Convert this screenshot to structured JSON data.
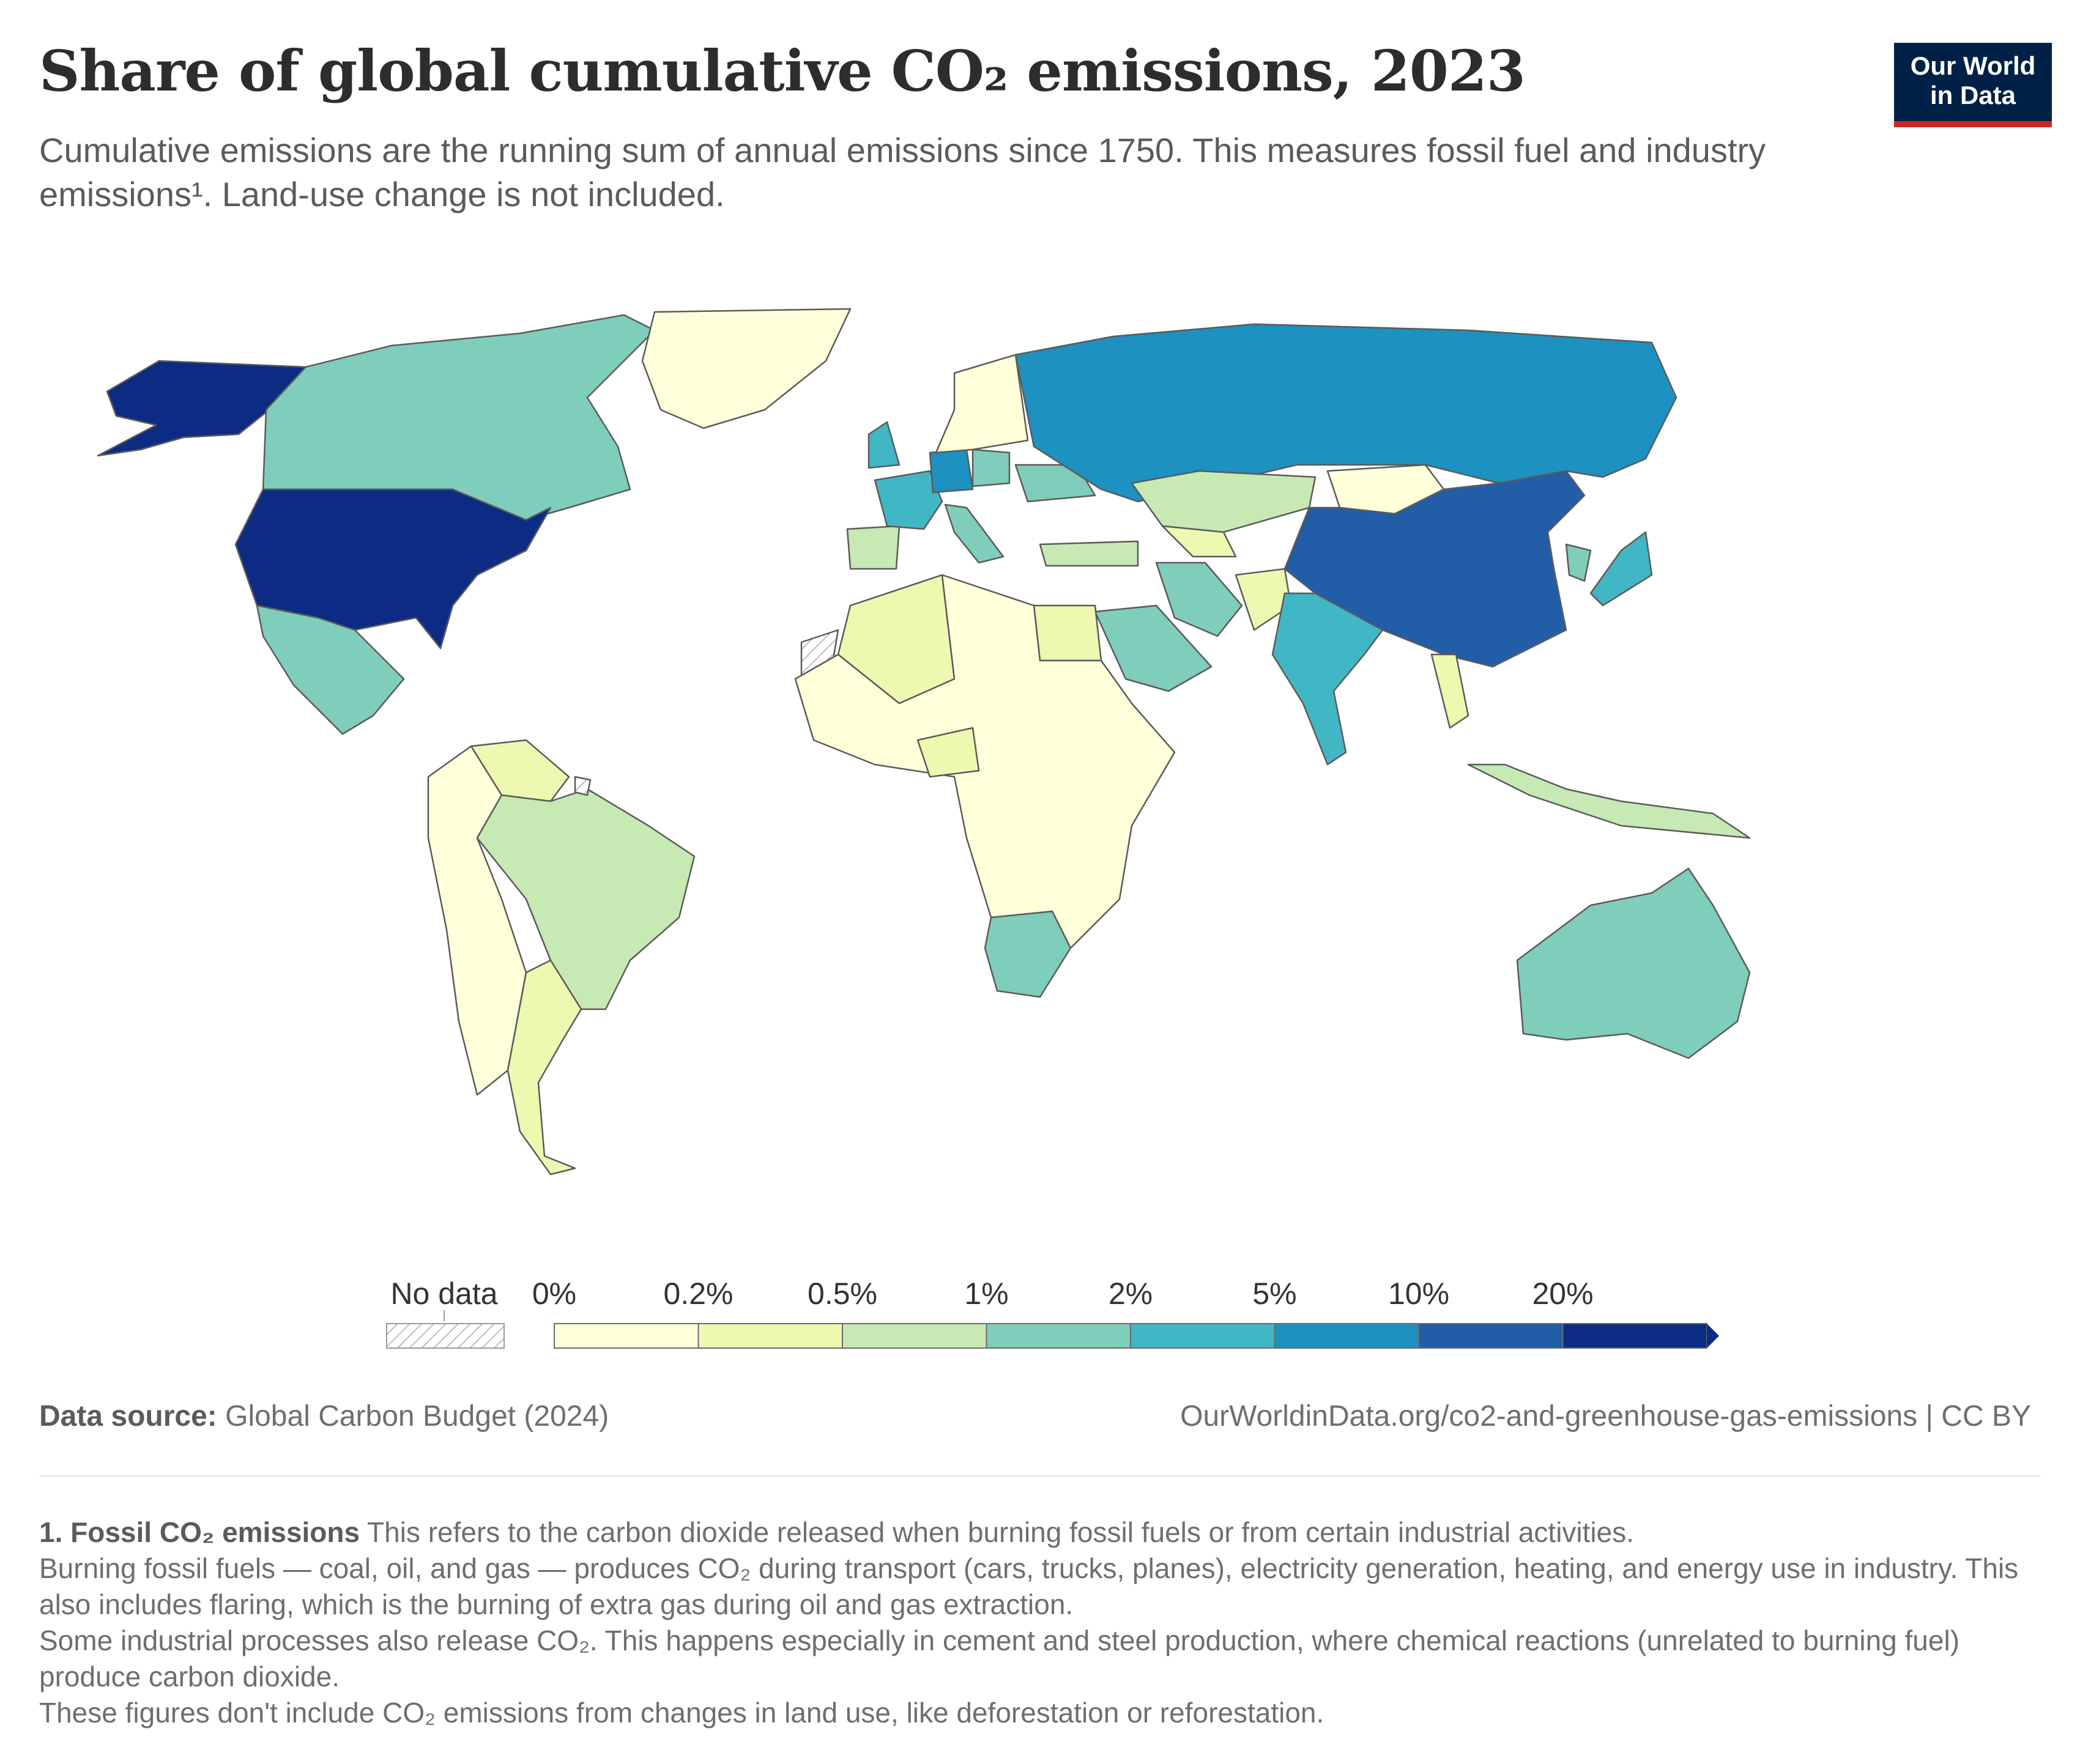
{
  "header": {
    "title": "Share of global cumulative CO₂ emissions, 2023",
    "subtitle": "Cumulative emissions are the running sum of annual emissions since 1750. This measures fossil fuel and industry emissions¹. Land-use change is not included."
  },
  "logo": {
    "line1": "Our World",
    "line2": "in Data",
    "bg_color": "#002147",
    "accent_color": "#ce261e"
  },
  "legend": {
    "no_data_label": "No data",
    "bins": [
      "0%",
      "0.2%",
      "0.5%",
      "1%",
      "2%",
      "5%",
      "10%",
      "20%"
    ],
    "colors": [
      "#ffffd9",
      "#edf8b1",
      "#c7e9b4",
      "#7fcdbb",
      "#41b6c4",
      "#1d91c0",
      "#225ea8",
      "#0c2c84"
    ]
  },
  "map": {
    "regions": [
      {
        "name": "United States",
        "bin": 7
      },
      {
        "name": "Alaska",
        "bin": 7
      },
      {
        "name": "China",
        "bin": 6
      },
      {
        "name": "Russia",
        "bin": 5
      },
      {
        "name": "Germany",
        "bin": 5
      },
      {
        "name": "United Kingdom",
        "bin": 4
      },
      {
        "name": "Japan",
        "bin": 4
      },
      {
        "name": "India",
        "bin": 4
      },
      {
        "name": "France",
        "bin": 4
      },
      {
        "name": "Canada",
        "bin": 3
      },
      {
        "name": "Ukraine",
        "bin": 3
      },
      {
        "name": "Poland",
        "bin": 3
      },
      {
        "name": "Italy",
        "bin": 3
      },
      {
        "name": "Mexico",
        "bin": 3
      },
      {
        "name": "South Africa",
        "bin": 3
      },
      {
        "name": "Australia",
        "bin": 3
      },
      {
        "name": "Iran",
        "bin": 3
      },
      {
        "name": "Saudi Arabia",
        "bin": 3
      },
      {
        "name": "South Korea",
        "bin": 3
      },
      {
        "name": "Brazil",
        "bin": 2
      },
      {
        "name": "Kazakhstan",
        "bin": 2
      },
      {
        "name": "Spain",
        "bin": 2
      },
      {
        "name": "Turkey",
        "bin": 2
      },
      {
        "name": "Indonesia",
        "bin": 2
      },
      {
        "name": "Argentina",
        "bin": 1
      },
      {
        "name": "Egypt",
        "bin": 1
      },
      {
        "name": "Algeria",
        "bin": 1
      },
      {
        "name": "Venezuela",
        "bin": 1
      },
      {
        "name": "Pakistan",
        "bin": 1
      },
      {
        "name": "Thailand",
        "bin": 1
      },
      {
        "name": "Uzbekistan",
        "bin": 1
      },
      {
        "name": "Nigeria",
        "bin": 1
      },
      {
        "name": "Greenland",
        "bin": 0
      },
      {
        "name": "Mongolia",
        "bin": 0
      },
      {
        "name": "Africa (most countries)",
        "bin": 0
      },
      {
        "name": "South America (west)",
        "bin": 0
      },
      {
        "name": "Western Sahara",
        "bin": -1
      },
      {
        "name": "French Guiana",
        "bin": -1
      }
    ]
  },
  "footer": {
    "source_label": "Data source:",
    "source_text": "Global Carbon Budget (2024)",
    "url_text": "OurWorldinData.org/co2-and-greenhouse-gas-emissions | CC BY"
  },
  "notes": {
    "n1_bold": "1. Fossil CO₂ emissions",
    "n1_text": "This refers to the carbon dioxide released when burning fossil fuels or from certain industrial activities.",
    "n2": "Burning fossil fuels — coal, oil, and gas — produces CO₂ during transport (cars, trucks, planes), electricity generation, heating, and energy use in industry. This also includes flaring, which is the burning of extra gas during oil and gas extraction.",
    "n3": "Some industrial processes also release CO₂. This happens especially in cement and steel production, where chemical reactions (unrelated to burning fuel) produce carbon dioxide.",
    "n4": "These figures don't include CO₂ emissions from changes in land use, like deforestation or reforestation."
  }
}
